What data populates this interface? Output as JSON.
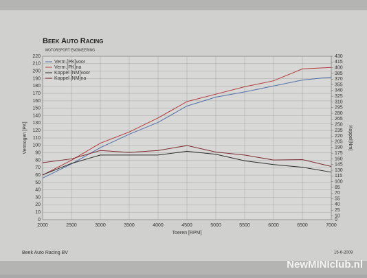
{
  "logo": "Beek Auto Racing",
  "tagline": "MOTORSPORT ENGINEERING",
  "footer_left": "Beek Auto Racing BV",
  "date": "15-6-2009",
  "watermark": "NewMINIclub.nl",
  "chart_data": {
    "type": "line",
    "x": [
      2000,
      2500,
      3000,
      3500,
      4000,
      4500,
      5000,
      5500,
      6000,
      6500,
      7000
    ],
    "xlim": [
      2000,
      7000
    ],
    "xticks": [
      2000,
      2500,
      3000,
      3500,
      4000,
      4500,
      5000,
      5500,
      6000,
      6500,
      7000
    ],
    "ylim": [
      0,
      220
    ],
    "yticks": [
      0,
      10,
      20,
      30,
      40,
      50,
      60,
      70,
      80,
      90,
      100,
      110,
      120,
      130,
      140,
      150,
      160,
      170,
      180,
      190,
      200,
      210,
      220
    ],
    "y2lim": [
      0,
      430
    ],
    "y2ticks": [
      0,
      10,
      25,
      40,
      55,
      70,
      85,
      100,
      115,
      130,
      145,
      160,
      175,
      190,
      205,
      220,
      235,
      250,
      265,
      280,
      295,
      310,
      325,
      340,
      355,
      370,
      385,
      400,
      415,
      430
    ],
    "xlabel": "Toeren [RPM]",
    "ylabel": "Vermogen [PK]",
    "y2label": "Koppel[Nm]",
    "grid": true,
    "legend": "upper left",
    "series": [
      {
        "name": "Verm.[PK]voor",
        "color": "#4f6fa8",
        "values": [
          56,
          75,
          97,
          115,
          131,
          153,
          165,
          172,
          180,
          188,
          192
        ]
      },
      {
        "name": "Verm.[PK]na",
        "color": "#b23a3a",
        "values": [
          60,
          80,
          103,
          118,
          137,
          159,
          169,
          179,
          187,
          203,
          205
        ]
      },
      {
        "name": "Koppel [NM]voor",
        "color": "#2a2a2a",
        "axis": "y2",
        "values": [
          118,
          148,
          170,
          170,
          170,
          180,
          172,
          155,
          145,
          138,
          125
        ]
      },
      {
        "name": "Koppel [NM]na",
        "color": "#7a2a30",
        "axis": "y2",
        "values": [
          150,
          160,
          182,
          177,
          182,
          195,
          178,
          170,
          157,
          158,
          140
        ]
      }
    ]
  }
}
